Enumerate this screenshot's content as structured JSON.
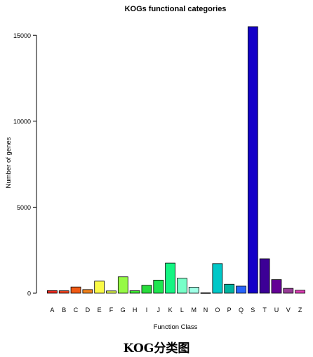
{
  "chart_data": {
    "type": "bar",
    "title": "KOGs functional categories",
    "xlabel": "Function Class",
    "ylabel": "Number of genes",
    "ylim": [
      0,
      15500
    ],
    "yticks": [
      0,
      5000,
      10000,
      15000
    ],
    "categories": [
      "A",
      "B",
      "C",
      "D",
      "E",
      "F",
      "G",
      "H",
      "I",
      "J",
      "K",
      "L",
      "M",
      "N",
      "O",
      "P",
      "Q",
      "S",
      "T",
      "U",
      "V",
      "Z"
    ],
    "values": [
      150,
      140,
      360,
      210,
      700,
      130,
      950,
      140,
      460,
      760,
      1750,
      870,
      350,
      20,
      1720,
      520,
      410,
      15500,
      2000,
      790,
      280,
      170
    ],
    "colors": [
      "#e8281e",
      "#e8411e",
      "#f05a14",
      "#f0821e",
      "#fafa46",
      "#e1fa50",
      "#96fa46",
      "#3ce632",
      "#28dc3c",
      "#1ee650",
      "#14f582",
      "#78ffc8",
      "#a0ffe6",
      "#64dcd2",
      "#00c8c8",
      "#00b4a0",
      "#2864fa",
      "#1400c8",
      "#3c0096",
      "#640096",
      "#963c96",
      "#dc3cb4"
    ]
  },
  "caption": "KOG分类图"
}
